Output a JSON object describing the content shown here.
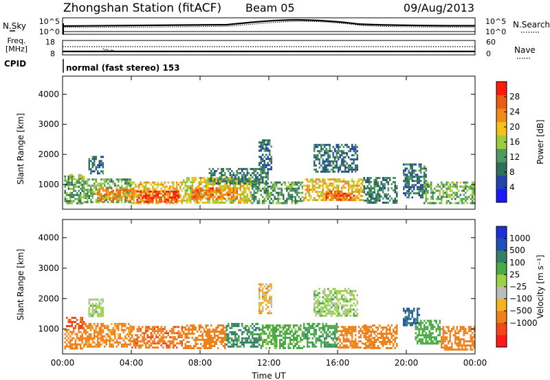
{
  "header": {
    "station": "Zhongshan Station (fitACF)",
    "beam": "Beam 05",
    "date": "09/Aug/2013"
  },
  "noise_panel": {
    "left_label": "N.Sky",
    "left_ticks": [
      "10^5",
      "10^0"
    ],
    "right_ticks": [
      "10^5",
      "10^0"
    ],
    "right_label": "N.Search"
  },
  "freq_panel": {
    "label_line1": "Freq.",
    "label_line2": "[MHz]",
    "left_ticks": [
      "18",
      "8"
    ],
    "right_ticks": [
      "60",
      "0"
    ],
    "right_label": "Nave"
  },
  "cpid": {
    "label": "CPID",
    "text": "normal (fast stereo) 153"
  },
  "colors": {
    "power_scale": [
      "#1a1aff",
      "#2244aa",
      "#2e6e5a",
      "#4f9a5e",
      "#9ccc3a",
      "#f2c21a",
      "#f28a18",
      "#ec5d12",
      "#ff1a0a"
    ],
    "velocity_scale": [
      "#ff1a1a",
      "#f2481a",
      "#f0801a",
      "#f5b320",
      "#bcbcbc",
      "#9ad24a",
      "#4aaa44",
      "#33806a",
      "#1e50b8",
      "#1a30d8"
    ]
  },
  "chart_data": [
    {
      "type": "heatmap",
      "name": "power",
      "ylabel": "Slant Range [km]",
      "y_ticks": [
        "1000",
        "2000",
        "3000",
        "4000"
      ],
      "y_tick_values": [
        1000,
        2000,
        3000,
        4000
      ],
      "ylim": [
        180,
        4600
      ],
      "xlim": [
        0,
        24
      ],
      "x_ticks": [
        "00:00",
        "04:00",
        "08:00",
        "12:00",
        "16:00",
        "20:00",
        "00:00"
      ],
      "x_tick_values": [
        0,
        4,
        8,
        12,
        16,
        20,
        24
      ],
      "colorbar_label": "Power [dB]",
      "colorbar_ticks": [
        "4",
        "8",
        "12",
        "16",
        "20",
        "24",
        "28"
      ],
      "colorbar_tick_values": [
        4,
        8,
        12,
        16,
        20,
        24,
        28
      ],
      "colorbar_range": [
        0,
        32
      ],
      "echo_regions": [
        {
          "t0": 0.1,
          "t1": 1.2,
          "r0": 350,
          "r1": 1300,
          "level": 12
        },
        {
          "t0": 0.4,
          "t1": 1.3,
          "r0": 1150,
          "r1": 1350,
          "level": 17
        },
        {
          "t0": 1.5,
          "t1": 2.4,
          "r0": 1400,
          "r1": 1950,
          "level": 8
        },
        {
          "t0": 1.2,
          "t1": 4.0,
          "r0": 400,
          "r1": 1200,
          "level": 14
        },
        {
          "t0": 2.0,
          "t1": 4.2,
          "r0": 450,
          "r1": 900,
          "level": 24
        },
        {
          "t0": 4.0,
          "t1": 7.0,
          "r0": 380,
          "r1": 1100,
          "level": 20
        },
        {
          "t0": 4.3,
          "t1": 6.8,
          "r0": 450,
          "r1": 800,
          "level": 28
        },
        {
          "t0": 7.0,
          "t1": 11.0,
          "r0": 400,
          "r1": 1250,
          "level": 18
        },
        {
          "t0": 7.5,
          "t1": 10.2,
          "r0": 500,
          "r1": 900,
          "level": 25
        },
        {
          "t0": 8.5,
          "t1": 12.0,
          "r0": 1050,
          "r1": 1550,
          "level": 10
        },
        {
          "t0": 11.4,
          "t1": 12.2,
          "r0": 1500,
          "r1": 2500,
          "level": 8
        },
        {
          "t0": 11.0,
          "t1": 14.0,
          "r0": 380,
          "r1": 1100,
          "level": 12
        },
        {
          "t0": 14.0,
          "t1": 17.5,
          "r0": 450,
          "r1": 1200,
          "level": 20
        },
        {
          "t0": 15.3,
          "t1": 17.0,
          "r0": 500,
          "r1": 800,
          "level": 27
        },
        {
          "t0": 14.6,
          "t1": 17.2,
          "r0": 1450,
          "r1": 2350,
          "level": 9
        },
        {
          "t0": 17.5,
          "t1": 19.5,
          "r0": 380,
          "r1": 1250,
          "level": 10
        },
        {
          "t0": 19.8,
          "t1": 21.2,
          "r0": 600,
          "r1": 1700,
          "level": 9
        },
        {
          "t0": 21.0,
          "t1": 24.0,
          "r0": 350,
          "r1": 1100,
          "level": 14
        }
      ]
    },
    {
      "type": "heatmap",
      "name": "velocity",
      "ylabel": "Slant Range [km]",
      "y_ticks": [
        "1000",
        "2000",
        "3000",
        "4000"
      ],
      "y_tick_values": [
        1000,
        2000,
        3000,
        4000
      ],
      "ylim": [
        180,
        4600
      ],
      "xlim": [
        0,
        24
      ],
      "x_ticks": [
        "00:00",
        "04:00",
        "08:00",
        "12:00",
        "16:00",
        "20:00",
        "00:00"
      ],
      "x_tick_values": [
        0,
        4,
        8,
        12,
        16,
        20,
        24
      ],
      "xlabel": "Time UT",
      "colorbar_label": "Velocity [m s⁻¹]",
      "colorbar_ticks": [
        "1000",
        "500",
        "100",
        "25",
        "−25",
        "−100",
        "−500",
        "−1000"
      ],
      "echo_regions": [
        {
          "t0": 0.1,
          "t1": 1.2,
          "r0": 350,
          "r1": 1000,
          "level": -300
        },
        {
          "t0": 0.2,
          "t1": 1.3,
          "r0": 1050,
          "r1": 1400,
          "level": -700
        },
        {
          "t0": 1.5,
          "t1": 2.4,
          "r0": 1400,
          "r1": 2000,
          "level": 50
        },
        {
          "t0": 1.2,
          "t1": 4.0,
          "r0": 400,
          "r1": 1200,
          "level": -150
        },
        {
          "t0": 4.0,
          "t1": 7.0,
          "r0": 380,
          "r1": 1100,
          "level": -400
        },
        {
          "t0": 7.0,
          "t1": 9.5,
          "r0": 400,
          "r1": 1150,
          "level": -200
        },
        {
          "t0": 9.5,
          "t1": 11.5,
          "r0": 400,
          "r1": 1200,
          "level": 600
        },
        {
          "t0": 11.4,
          "t1": 12.2,
          "r0": 1500,
          "r1": 2500,
          "level": -60
        },
        {
          "t0": 11.5,
          "t1": 14.0,
          "r0": 380,
          "r1": 1150,
          "level": 150
        },
        {
          "t0": 14.0,
          "t1": 16.0,
          "r0": 450,
          "r1": 1200,
          "level": 400
        },
        {
          "t0": 16.0,
          "t1": 18.0,
          "r0": 400,
          "r1": 1100,
          "level": -150
        },
        {
          "t0": 14.6,
          "t1": 17.2,
          "r0": 1450,
          "r1": 2350,
          "level": 60
        },
        {
          "t0": 17.5,
          "t1": 19.5,
          "r0": 380,
          "r1": 1150,
          "level": -300
        },
        {
          "t0": 19.8,
          "t1": 20.8,
          "r0": 1100,
          "r1": 1700,
          "level": 1000
        },
        {
          "t0": 20.5,
          "t1": 22.0,
          "r0": 500,
          "r1": 1300,
          "level": 200
        },
        {
          "t0": 22.0,
          "t1": 24.0,
          "r0": 350,
          "r1": 1100,
          "level": -250
        }
      ]
    }
  ]
}
